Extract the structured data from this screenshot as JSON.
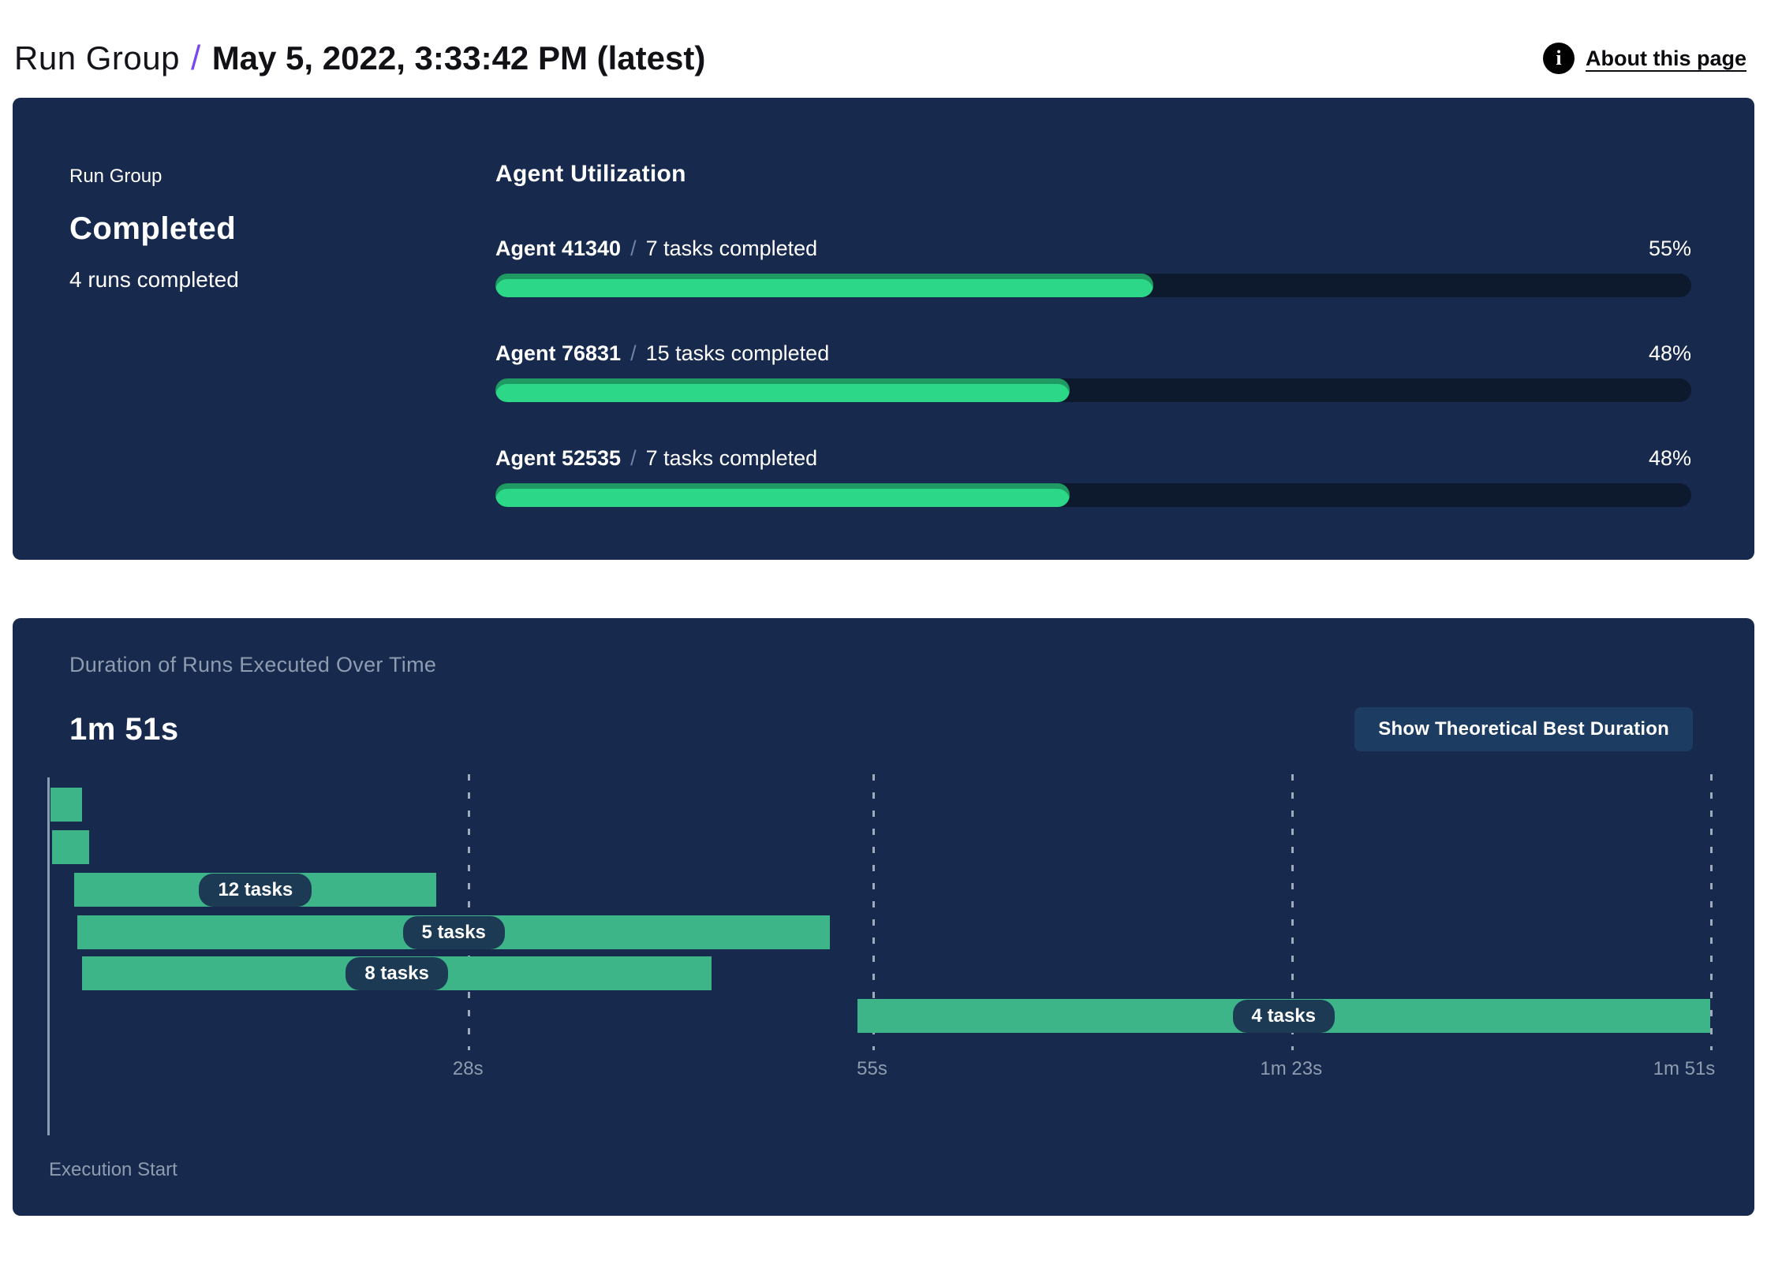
{
  "header": {
    "breadcrumb_root": "Run Group",
    "separator": "/",
    "title": "May 5, 2022, 3:33:42 PM (latest)",
    "about_link": "About this page",
    "info_icon": "info-icon"
  },
  "summary_panel": {
    "label": "Run Group",
    "status": "Completed",
    "runs_text": "4 runs completed",
    "utilization": {
      "title": "Agent Utilization",
      "separator": "/",
      "agents": [
        {
          "name": "Agent 41340",
          "tasks": "7 tasks completed",
          "percent": 55,
          "percent_label": "55%"
        },
        {
          "name": "Agent 76831",
          "tasks": "15 tasks completed",
          "percent": 48,
          "percent_label": "48%"
        },
        {
          "name": "Agent 52535",
          "tasks": "7 tasks completed",
          "percent": 48,
          "percent_label": "48%"
        }
      ]
    }
  },
  "duration_panel": {
    "title": "Duration of Runs Executed Over Time",
    "total_duration": "1m 51s",
    "button_label": "Show Theoretical Best Duration",
    "execution_start_label": "Execution Start",
    "chart_data": {
      "type": "gantt",
      "title": "Duration of Runs Executed Over Time",
      "x_axis": {
        "unit": "seconds",
        "min": 0,
        "max": 111,
        "origin_label": "Execution Start"
      },
      "ticks": [
        {
          "seconds": 28,
          "label": "28s"
        },
        {
          "seconds": 55,
          "label": "55s"
        },
        {
          "seconds": 83,
          "label": "1m 23s"
        },
        {
          "seconds": 111,
          "label": "1m 51s"
        }
      ],
      "bars": [
        {
          "label": "",
          "start_s": 0.1,
          "end_s": 2.2
        },
        {
          "label": "",
          "start_s": 0.2,
          "end_s": 2.7
        },
        {
          "label": "12 tasks",
          "start_s": 1.7,
          "end_s": 25.9
        },
        {
          "label": "5 tasks",
          "start_s": 1.9,
          "end_s": 52.2
        },
        {
          "label": "8 tasks",
          "start_s": 2.2,
          "end_s": 44.3
        },
        {
          "label": "4 tasks",
          "start_s": 54.0,
          "end_s": 111.0
        }
      ]
    }
  },
  "colors": {
    "panel_bg": "#17294c",
    "track": "#0d1a2e",
    "green": "#2cd787",
    "teal": "#3eb489",
    "pill_bg": "#1c3a54",
    "grid": "#b6c2cf",
    "axis": "#9fb2c4",
    "muted": "#8e9cb0",
    "purple": "#7747f0",
    "button_bg": "#1d3c61"
  }
}
